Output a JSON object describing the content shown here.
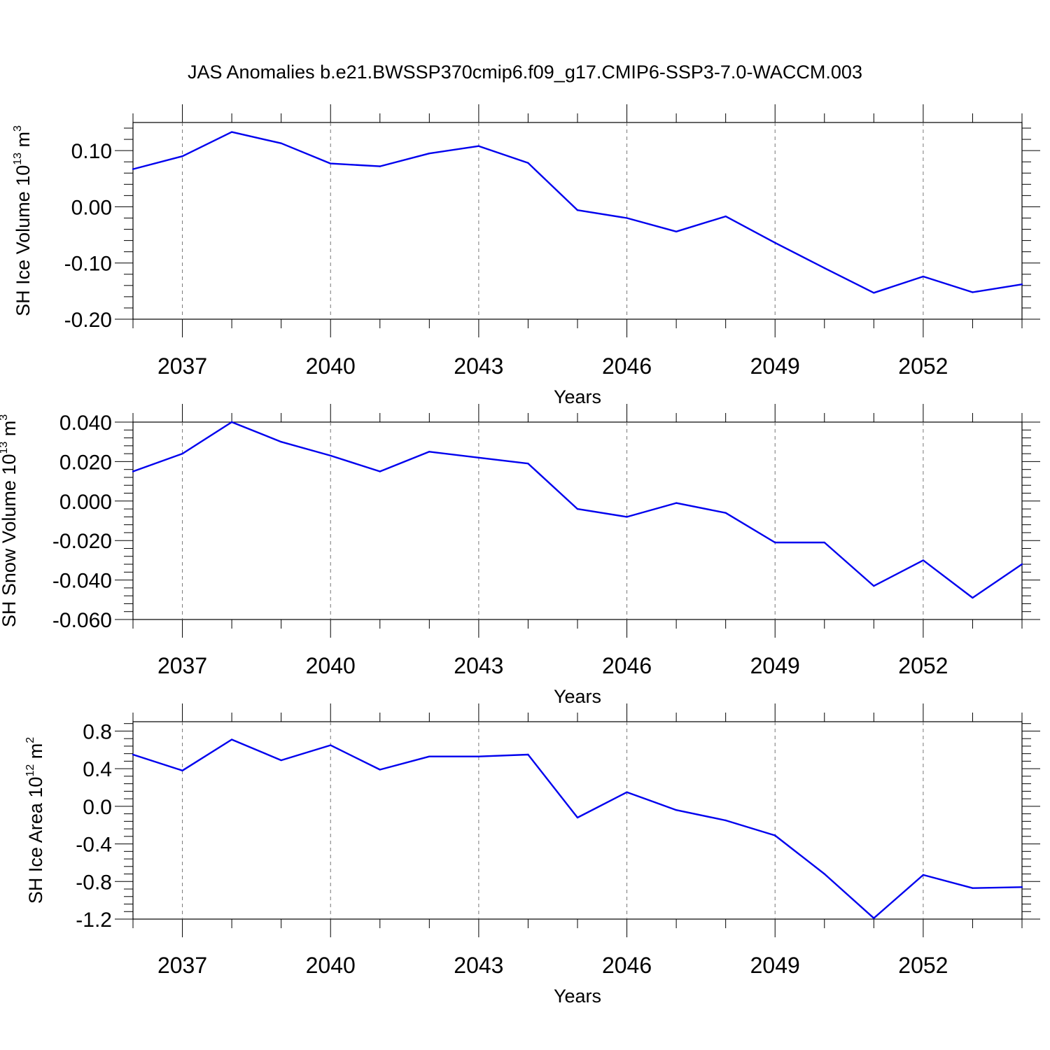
{
  "title": "JAS Anomalies b.e21.BWSSP370cmip6.f09_g17.CMIP6-SSP3-7.0-WACCM.003",
  "chart_data": [
    {
      "type": "line",
      "ylabel_parts": [
        "SH Ice Volume 10",
        "13",
        " m",
        "3"
      ],
      "xlabel": "Years",
      "xlim": [
        2036,
        2054
      ],
      "ylim": [
        -0.2,
        0.15
      ],
      "xticks": [
        2037,
        2040,
        2043,
        2046,
        2049,
        2052
      ],
      "xtick_labels": [
        "2037",
        "2040",
        "2043",
        "2046",
        "2049",
        "2052"
      ],
      "yticks": [
        0.1,
        0.0,
        -0.1,
        -0.2
      ],
      "ytick_labels": [
        "0.10",
        "0.00",
        "-0.10",
        "-0.20"
      ],
      "grid": "x-dashed",
      "line_color": "#0000ee",
      "x": [
        2036,
        2037,
        2038,
        2039,
        2040,
        2041,
        2042,
        2043,
        2044,
        2045,
        2046,
        2047,
        2048,
        2049,
        2050,
        2051,
        2052,
        2053,
        2054
      ],
      "y": [
        0.067,
        0.09,
        0.133,
        0.113,
        0.077,
        0.072,
        0.095,
        0.108,
        0.078,
        -0.006,
        -0.02,
        -0.044,
        -0.017,
        -0.064,
        -0.109,
        -0.153,
        -0.124,
        -0.152,
        -0.138
      ]
    },
    {
      "type": "line",
      "ylabel_parts": [
        "SH Snow Volume 10",
        "13",
        " m",
        "3"
      ],
      "xlabel": "Years",
      "xlim": [
        2036,
        2054
      ],
      "ylim": [
        -0.06,
        0.04
      ],
      "xticks": [
        2037,
        2040,
        2043,
        2046,
        2049,
        2052
      ],
      "xtick_labels": [
        "2037",
        "2040",
        "2043",
        "2046",
        "2049",
        "2052"
      ],
      "yticks": [
        0.04,
        0.02,
        0.0,
        -0.02,
        -0.04,
        -0.06
      ],
      "ytick_labels": [
        "0.040",
        "0.020",
        "0.000",
        "-0.020",
        "-0.040",
        "-0.060"
      ],
      "grid": "x-dashed",
      "line_color": "#0000ee",
      "x": [
        2036,
        2037,
        2038,
        2039,
        2040,
        2041,
        2042,
        2043,
        2044,
        2045,
        2046,
        2047,
        2048,
        2049,
        2050,
        2051,
        2052,
        2053,
        2054
      ],
      "y": [
        0.015,
        0.024,
        0.04,
        0.03,
        0.023,
        0.015,
        0.025,
        0.022,
        0.019,
        -0.004,
        -0.008,
        -0.001,
        -0.006,
        -0.021,
        -0.021,
        -0.043,
        -0.03,
        -0.049,
        -0.032
      ]
    },
    {
      "type": "line",
      "ylabel_parts": [
        "SH Ice Area 10",
        "12",
        " m",
        "2"
      ],
      "xlabel": "Years",
      "xlim": [
        2036,
        2054
      ],
      "ylim": [
        -1.2,
        0.9
      ],
      "xticks": [
        2037,
        2040,
        2043,
        2046,
        2049,
        2052
      ],
      "xtick_labels": [
        "2037",
        "2040",
        "2043",
        "2046",
        "2049",
        "2052"
      ],
      "yticks": [
        0.8,
        0.4,
        0.0,
        -0.4,
        -0.8,
        -1.2
      ],
      "ytick_labels": [
        "0.8",
        "0.4",
        "0.0",
        "-0.4",
        "-0.8",
        "-1.2"
      ],
      "grid": "x-dashed",
      "line_color": "#0000ee",
      "x": [
        2036,
        2037,
        2038,
        2039,
        2040,
        2041,
        2042,
        2043,
        2044,
        2045,
        2046,
        2047,
        2048,
        2049,
        2050,
        2051,
        2052,
        2053,
        2054
      ],
      "y": [
        0.55,
        0.38,
        0.71,
        0.49,
        0.65,
        0.39,
        0.53,
        0.53,
        0.55,
        -0.12,
        0.15,
        -0.04,
        -0.15,
        -0.31,
        -0.72,
        -1.19,
        -0.73,
        -0.87,
        -0.86
      ]
    }
  ]
}
